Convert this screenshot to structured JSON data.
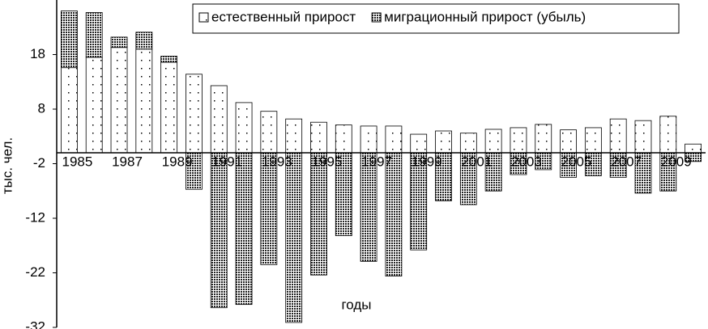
{
  "chart_data": {
    "type": "bar",
    "x_label": "годы",
    "y_label": "тыс. чел.",
    "categories": [
      1985,
      null,
      1987,
      null,
      1989,
      null,
      1991,
      null,
      1993,
      null,
      1995,
      null,
      1997,
      null,
      1999,
      null,
      2001,
      null,
      2003,
      null,
      2005,
      null,
      2007,
      null,
      2009,
      null
    ],
    "series": [
      {
        "name": "естественный прирост",
        "color": "#ffffff",
        "values": [
          15.6,
          17.5,
          19.3,
          19.0,
          16.6,
          14.4,
          12.3,
          9.2,
          7.6,
          6.2,
          5.6,
          5.1,
          4.9,
          4.9,
          3.4,
          4.0,
          3.6,
          4.3,
          4.6,
          5.2,
          4.2,
          4.6,
          6.2,
          5.9,
          6.7,
          1.6
        ]
      },
      {
        "name": "миграционный прирост (убыль)",
        "color": "#222222",
        "values": [
          10.4,
          8.2,
          1.9,
          3.1,
          1.1,
          -6.7,
          -28.4,
          -27.8,
          -20.5,
          -31.1,
          -22.4,
          -15.2,
          -19.9,
          -22.6,
          -17.8,
          -8.8,
          -9.5,
          -7.0,
          -4.0,
          -3.1,
          -4.5,
          -4.2,
          -4.5,
          -7.4,
          -7.0,
          -1.6
        ]
      }
    ],
    "stacked": true,
    "ylim": [
      -32,
      28
    ],
    "yticks": [
      18,
      8,
      -2,
      -12,
      -22,
      -32
    ],
    "legend": "top-right"
  }
}
